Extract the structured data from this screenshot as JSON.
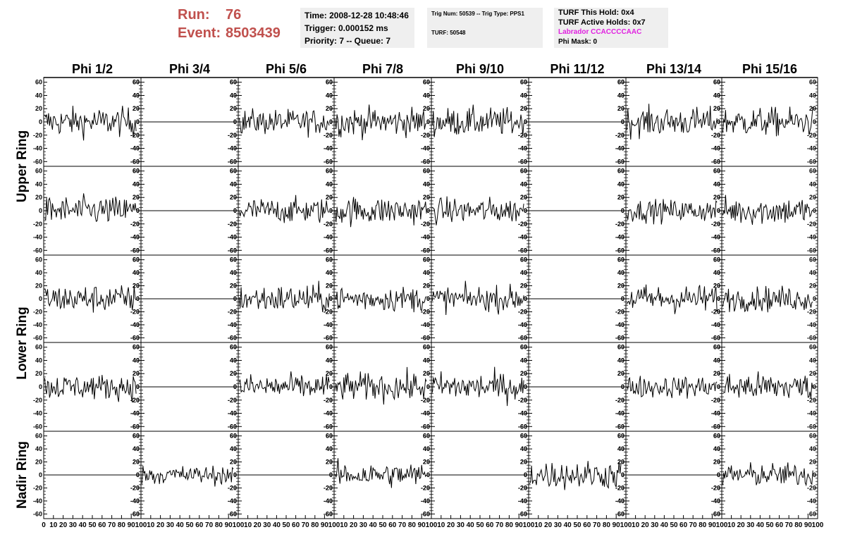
{
  "header": {
    "run_label": "Run:",
    "run_value": "76",
    "event_label": "Event:",
    "event_value": "8503439",
    "time": "Time: 2008-12-28 10:48:46",
    "trigger": "Trigger: 0.000152 ms",
    "priority": "Priority: 7 -- Queue: 7",
    "trig_num": "Trig Num: 50539 -- Trig Type: PPS1",
    "turf": "TURF: 50548",
    "turf_hold": "TURF This Hold: 0x4",
    "turf_active": "TURF Active Holds: 0x7",
    "labrador": "Labrador CCACCCCAAC",
    "phi_mask": "Phi Mask: 0"
  },
  "colors": {
    "run_text": "#c0504d",
    "labrador_text": "#e020e0",
    "panel_bg": "#efefef",
    "trace": "#000000"
  },
  "chart_data": {
    "type": "line",
    "description_free": true,
    "columns": [
      "Phi 1/2",
      "Phi 3/4",
      "Phi 5/6",
      "Phi 7/8",
      "Phi 9/10",
      "Phi 11/12",
      "Phi 13/14",
      "Phi 15/16"
    ],
    "row_labels": [
      {
        "label": "Upper Ring",
        "rows": [
          0,
          1
        ]
      },
      {
        "label": "Lower Ring",
        "rows": [
          2,
          3
        ]
      },
      {
        "label": "Nadir Ring",
        "rows": [
          4
        ]
      }
    ],
    "xlim": [
      0,
      100
    ],
    "ylim": [
      -65,
      65
    ],
    "y_ticks": [
      60,
      40,
      20,
      0,
      -20,
      -40,
      -60
    ],
    "x_tick_labels": [
      "0",
      "10",
      "20",
      "30",
      "40",
      "50",
      "60",
      "70",
      "80",
      "90",
      "100"
    ],
    "samples_per_trace": 95,
    "traces": [
      [
        18,
        0,
        16,
        18,
        18,
        0,
        18,
        18
      ],
      [
        18,
        0,
        16,
        18,
        16,
        0,
        14,
        18
      ],
      [
        18,
        0,
        18,
        16,
        16,
        0,
        18,
        16
      ],
      [
        16,
        0,
        16,
        18,
        18,
        0,
        14,
        18
      ],
      [
        0,
        12,
        0,
        16,
        0,
        18,
        0,
        15
      ]
    ],
    "trace_amplitude_note": "approximate RMS of each waveform in ADC counts; 0 = flat line"
  }
}
